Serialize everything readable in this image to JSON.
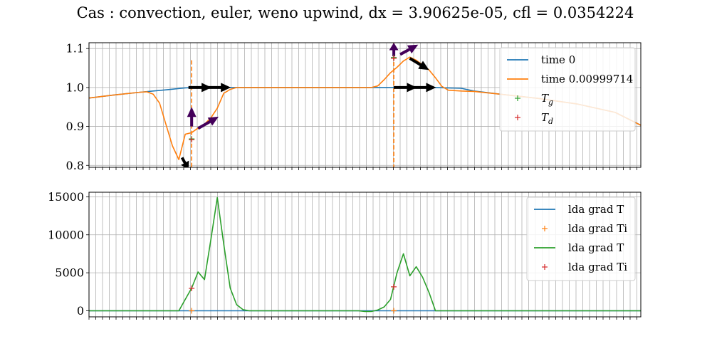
{
  "title": "Cas : convection, euler, weno upwind, dx = 3.90625e-05, cfl = 0.0354224",
  "chart_data": [
    {
      "type": "line",
      "ylim": [
        0.795,
        1.115
      ],
      "yticks": [
        "0.8",
        "0.9",
        "1.0",
        "1.1"
      ],
      "ytick_values": [
        0.8,
        0.9,
        1.0,
        1.1
      ],
      "xlim": [
        0,
        86
      ],
      "grid": true,
      "legend_placement": "top-right",
      "series": [
        {
          "name": "time 0",
          "kind": "line",
          "color": "#1f77b4",
          "x": [
            0,
            4,
            8,
            12,
            15,
            16,
            20,
            25,
            30,
            40,
            47,
            48,
            53,
            54,
            58,
            60,
            64,
            70,
            76,
            82,
            86
          ],
          "y": [
            0.973,
            0.981,
            0.988,
            0.994,
            0.999,
            1.0,
            1.0,
            1.0,
            1.0,
            1.0,
            1.0,
            1.0,
            1.0,
            1.0,
            0.998,
            0.991,
            0.983,
            0.972,
            0.958,
            0.936,
            0.903
          ]
        },
        {
          "name": "time 0.00999714",
          "kind": "line",
          "color": "#ff7f0e",
          "x": [
            0,
            4,
            8,
            9,
            10,
            11,
            12,
            13,
            14,
            15,
            16,
            17,
            18,
            19,
            20,
            21,
            22,
            23,
            24,
            30,
            40,
            44,
            45,
            46,
            47,
            48,
            49,
            50,
            51,
            52,
            53,
            54,
            55,
            56,
            58,
            60,
            64,
            70,
            76,
            82,
            86
          ],
          "y": [
            0.973,
            0.981,
            0.988,
            0.989,
            0.983,
            0.96,
            0.905,
            0.85,
            0.815,
            0.88,
            0.884,
            0.896,
            0.906,
            0.922,
            0.947,
            0.985,
            0.995,
            1.0,
            1.0,
            1.0,
            1.0,
            1.0,
            1.004,
            1.02,
            1.038,
            1.052,
            1.068,
            1.078,
            1.07,
            1.058,
            1.045,
            1.025,
            1.003,
            0.993,
            0.991,
            0.99,
            0.983,
            0.972,
            0.958,
            0.936,
            0.903
          ]
        },
        {
          "name": "T_g",
          "kind": "marker",
          "color": "#2ca02c",
          "x": [
            16,
            47.5
          ],
          "y": [
            0.868,
            1.077
          ]
        },
        {
          "name": "T_d",
          "kind": "marker",
          "color": "#d62728",
          "x": [
            16,
            47.5
          ],
          "y": [
            0.866,
            1.075
          ]
        }
      ],
      "vlines": [
        {
          "x": 16,
          "y0": 0.795,
          "y1": 1.07,
          "color": "#ff7f0e"
        },
        {
          "x": 47.5,
          "y0": 0.795,
          "y1": 1.115,
          "color": "#ff7f0e"
        }
      ],
      "arrows": [
        {
          "x": 15.5,
          "y": 1.0,
          "dx": 3.6,
          "dy": 0.0,
          "color": "#000000"
        },
        {
          "x": 18.5,
          "y": 1.0,
          "dx": 3.6,
          "dy": 0.0,
          "color": "#000000"
        },
        {
          "x": 47.5,
          "y": 1.0,
          "dx": 3.6,
          "dy": 0.0,
          "color": "#000000"
        },
        {
          "x": 50.5,
          "y": 1.0,
          "dx": 3.6,
          "dy": 0.0,
          "color": "#000000"
        },
        {
          "x": 14.5,
          "y": 0.82,
          "dx": 1.0,
          "dy": -0.03,
          "color": "#000000"
        },
        {
          "x": 50.0,
          "y": 1.075,
          "dx": 3.0,
          "dy": -0.03,
          "color": "#000000"
        },
        {
          "x": 16.0,
          "y": 0.9,
          "dx": 0.0,
          "dy": 0.05,
          "color": "#44005a"
        },
        {
          "x": 17.0,
          "y": 0.895,
          "dx": 3.2,
          "dy": 0.03,
          "color": "#44005a"
        },
        {
          "x": 47.5,
          "y": 1.08,
          "dx": 0.0,
          "dy": 0.035,
          "color": "#44005a"
        },
        {
          "x": 48.5,
          "y": 1.085,
          "dx": 2.8,
          "dy": 0.025,
          "color": "#44005a"
        }
      ],
      "legend": [
        {
          "label": "time 0",
          "kind": "line",
          "color": "#1f77b4"
        },
        {
          "label": "time 0.00999714",
          "kind": "line",
          "color": "#ff7f0e"
        },
        {
          "label": "T",
          "sub": "g",
          "kind": "marker",
          "color": "#2ca02c"
        },
        {
          "label": "T",
          "sub": "d",
          "kind": "marker",
          "color": "#d62728"
        }
      ]
    },
    {
      "type": "line",
      "ylim": [
        -800,
        15600
      ],
      "yticks": [
        "0",
        "5000",
        "10000",
        "15000"
      ],
      "ytick_values": [
        0,
        5000,
        10000,
        15000
      ],
      "xlim": [
        0,
        86
      ],
      "grid": true,
      "legend_placement": "top-right",
      "series": [
        {
          "name": "lda grad T",
          "kind": "line",
          "color": "#1f77b4",
          "x": [
            0,
            86
          ],
          "y": [
            0,
            0
          ]
        },
        {
          "name": "lda grad Ti",
          "kind": "marker",
          "color": "#ff7f0e",
          "x": [
            16,
            47.5
          ],
          "y": [
            0,
            0
          ]
        },
        {
          "name": "lda grad T",
          "kind": "line",
          "color": "#2ca02c",
          "x": [
            0,
            14,
            15,
            16,
            17,
            18,
            19,
            20,
            21,
            22,
            23,
            24,
            25,
            26,
            30,
            35,
            38,
            40,
            42,
            43,
            44,
            45,
            46,
            47,
            48,
            49,
            50,
            51,
            52,
            53,
            54,
            86
          ],
          "y": [
            0,
            0,
            1500,
            3000,
            5100,
            4100,
            9400,
            14900,
            8800,
            3000,
            800,
            150,
            0,
            0,
            0,
            0,
            0,
            0,
            0,
            -100,
            -100,
            100,
            500,
            1500,
            5000,
            7500,
            4600,
            5800,
            4400,
            2400,
            0,
            0
          ]
        },
        {
          "name": "lda grad Ti",
          "kind": "marker",
          "color": "#d62728",
          "x": [
            16,
            47.5
          ],
          "y": [
            2950,
            3150
          ]
        }
      ],
      "legend": [
        {
          "label": "lda grad T",
          "kind": "line",
          "color": "#1f77b4"
        },
        {
          "label": "lda grad Ti",
          "kind": "marker",
          "color": "#ff7f0e"
        },
        {
          "label": "lda grad T",
          "kind": "line",
          "color": "#2ca02c"
        },
        {
          "label": "lda grad Ti",
          "kind": "marker",
          "color": "#d62728"
        }
      ]
    }
  ]
}
